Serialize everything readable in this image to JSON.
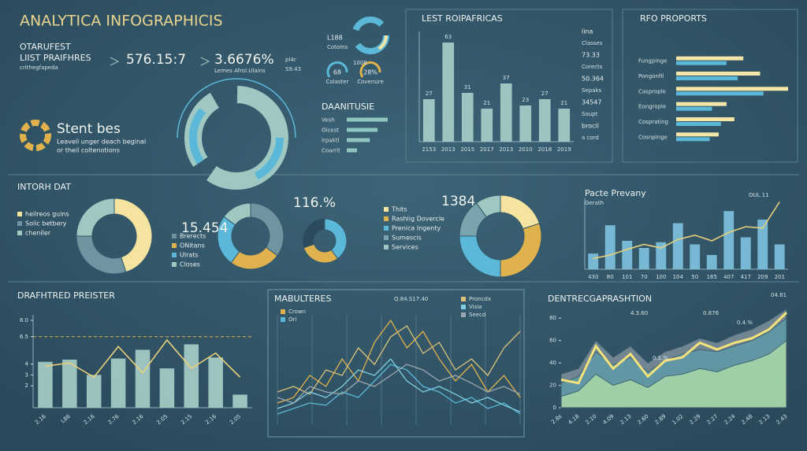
{
  "header": {
    "title": "ANALYTICA INFOGRAPHICIS"
  },
  "stats": {
    "label": "OTARUFEST",
    "sublabel": "LIIST PRAIFHRES",
    "caption": "crithegfapeda",
    "value1": "576.15:7",
    "value2": "3.6676%",
    "value2_caption": "Lemes Afrol.Ulains",
    "value2_unit": "pl4r",
    "value2_extra": "S9.43"
  },
  "gauges": {
    "top_value": "L188",
    "top_label": "Cotoins",
    "top_extra": "1008",
    "left_value": "68",
    "left_label": "Colaster",
    "right_value": "28%",
    "right_label": "Covenure"
  },
  "ring_block": {
    "title": "Stent bes",
    "text1": "Leavell unger deach beginal",
    "text2": "or theil coltenotions"
  },
  "sections": {
    "middle": "INTORH DAT"
  },
  "chart_data": [
    {
      "type": "bar",
      "title": "LEST ROIPAFRICAS",
      "categories": [
        "2153",
        "2013",
        "2015",
        "2017",
        "2013",
        "2010",
        "2018",
        "2019"
      ],
      "values": [
        27,
        63,
        31,
        21,
        37,
        23,
        27,
        21
      ],
      "color": "#a8cfc9",
      "ylim": [
        0,
        70
      ],
      "show_values": true,
      "side_labels": [
        "lina",
        "Classes",
        "73.33",
        "Corects",
        "50.364",
        "Sepaks",
        "34547",
        "Soupt",
        "brocil",
        "a cord"
      ]
    },
    {
      "type": "hbar",
      "title": "RFO PROPORTS",
      "categories": [
        "Fungpinge",
        "Pongonfil",
        "Casprople",
        "Eongrople",
        "Cosprating",
        "Cosnpinge"
      ],
      "xlim": [
        0,
        100
      ],
      "series": [
        {
          "color": "#f3e6a6",
          "values": [
            60,
            75,
            100,
            45,
            52,
            38
          ]
        },
        {
          "color": "#5bb8d8",
          "values": [
            45,
            55,
            78,
            32,
            40,
            30
          ]
        }
      ]
    },
    {
      "type": "hbar",
      "title": "DAANITUSIE",
      "categories": [
        "Vesh",
        "Oicest",
        "Irpaktl",
        "Coarrit"
      ],
      "xlim": [
        0,
        100
      ],
      "series": [
        {
          "color": "#8fc6c0",
          "values": [
            80,
            60,
            45,
            20
          ]
        }
      ]
    },
    {
      "type": "pie",
      "categories": [
        "hellreos guins",
        "Solic betbery",
        "cheniler"
      ],
      "values": [
        45,
        30,
        25
      ],
      "colors": [
        "#f5e3a0",
        "#6f95a0",
        "#9fc8c2"
      ]
    },
    {
      "type": "pie",
      "title": "15.454",
      "categories": [
        "Brerects",
        "ONitans",
        "Ulrats",
        "Closes"
      ],
      "values": [
        35,
        25,
        25,
        15
      ],
      "colors": [
        "#6f95a0",
        "#e0b24d",
        "#5bb8d8",
        "#9fc8c2"
      ]
    },
    {
      "type": "pie",
      "title": "116.%",
      "values": [
        40,
        30,
        30
      ],
      "colors": [
        "#5bb8d8",
        "#e0b24d",
        "#2c4a5c"
      ]
    },
    {
      "type": "pie",
      "title": "1384",
      "categories": [
        "Thits",
        "Rashiig Dovercle",
        "Prenica Ingenty",
        "Sumescis",
        "Services"
      ],
      "values": [
        20,
        30,
        25,
        15,
        10
      ],
      "colors": [
        "#f5e3a0",
        "#e0b24d",
        "#5bb8d8",
        "#7aa3ad",
        "#9fc8c2"
      ]
    },
    {
      "type": "bar",
      "title": "Pacte Prevany",
      "subtitle": "Gerath",
      "annotation": "OUL 11",
      "ylim": [
        0,
        100
      ],
      "categories": [
        "430",
        "80",
        "101",
        "70",
        "100",
        "104",
        "50",
        "165",
        "407",
        "417",
        "209",
        "201"
      ],
      "series": [
        {
          "type": "bar",
          "color": "#7ec3e0",
          "values": [
            22,
            62,
            40,
            30,
            38,
            65,
            35,
            20,
            82,
            45,
            70,
            35
          ]
        },
        {
          "type": "line",
          "color": "#e8d17a",
          "values": [
            15,
            20,
            28,
            35,
            30,
            42,
            48,
            40,
            52,
            60,
            58,
            95
          ]
        }
      ]
    },
    {
      "type": "bar",
      "title": "DRAFHTRED PREISTER",
      "ylim": [
        0,
        8.5
      ],
      "yticks": [
        2,
        3,
        4,
        6.5,
        {
          "value": 8,
          "label": "8.0"
        }
      ],
      "reference_line": 6.5,
      "rotate_labels": true,
      "categories": [
        "2.16",
        "L86",
        "2.16",
        "2.76",
        "2.16",
        "2.05",
        "2.15",
        "2.16",
        "2.05"
      ],
      "series": [
        {
          "type": "bar",
          "color": "#a8cfc9",
          "values": [
            4.2,
            4.4,
            3.0,
            4.5,
            5.3,
            3.6,
            5.8,
            4.6,
            1.2
          ]
        },
        {
          "type": "line",
          "color": "#e8d17a",
          "values": [
            3.8,
            4.1,
            2.8,
            5.6,
            3.2,
            6.2,
            3.6,
            5.0,
            2.8
          ]
        }
      ]
    },
    {
      "type": "line",
      "title": "MABULTERES",
      "annotation": "Q.84.S17.40",
      "ylim": [
        0,
        100
      ],
      "series": [
        {
          "name": "Crown",
          "color": "#e0b24d",
          "values": [
            20,
            25,
            45,
            35,
            60,
            40,
            75,
            95,
            70,
            85,
            60,
            40,
            55,
            30,
            45,
            25
          ]
        },
        {
          "name": "Ori",
          "color": "#5bb8d8",
          "values": [
            10,
            15,
            20,
            18,
            30,
            25,
            40,
            55,
            50,
            35,
            30,
            20,
            25,
            15,
            20,
            10
          ]
        },
        {
          "name": "Proncdx",
          "color": "#d9c27a",
          "values": [
            30,
            35,
            28,
            50,
            45,
            70,
            55,
            80,
            90,
            65,
            75,
            50,
            60,
            45,
            70,
            85
          ]
        },
        {
          "name": "Visia",
          "color": "#7fd0e0",
          "values": [
            15,
            20,
            30,
            25,
            35,
            50,
            45,
            60,
            40,
            30,
            35,
            28,
            20,
            25,
            18,
            12
          ]
        },
        {
          "name": "Seecd",
          "color": "#9aa7b0",
          "values": [
            25,
            20,
            35,
            30,
            28,
            40,
            35,
            45,
            55,
            50,
            40,
            45,
            38,
            30,
            35,
            28
          ]
        }
      ]
    },
    {
      "type": "area",
      "title": "DENTRECGAPRASHTION",
      "ylim": [
        0,
        90
      ],
      "yticks": [
        0,
        20,
        40,
        60,
        80
      ],
      "rotate_labels": true,
      "annotations": [
        "4.3.60",
        "0.876",
        "0.4.%",
        "0.1.%",
        "04.81"
      ],
      "categories": [
        "2.8s",
        "4.18",
        "2.10",
        "4.09",
        "2.13",
        "2.60",
        "2.89",
        "1.02",
        "2.29",
        "2.27",
        "2.24",
        "2.48",
        "2.13",
        "2.43"
      ],
      "series": [
        {
          "type": "area",
          "color": "#7d909b",
          "values": [
            30,
            35,
            60,
            45,
            55,
            40,
            50,
            55,
            62,
            58,
            65,
            70,
            78,
            88
          ]
        },
        {
          "type": "area",
          "color": "#5f9aa8",
          "values": [
            22,
            28,
            50,
            38,
            45,
            32,
            42,
            48,
            52,
            50,
            55,
            60,
            68,
            80
          ]
        },
        {
          "type": "area",
          "color": "#a9d9a8",
          "values": [
            10,
            15,
            30,
            20,
            25,
            18,
            28,
            30,
            35,
            32,
            38,
            42,
            48,
            60
          ]
        },
        {
          "type": "line",
          "color": "#f3e27a",
          "values": [
            25,
            22,
            55,
            35,
            48,
            28,
            42,
            45,
            58,
            52,
            58,
            62,
            70,
            85
          ]
        }
      ]
    }
  ]
}
